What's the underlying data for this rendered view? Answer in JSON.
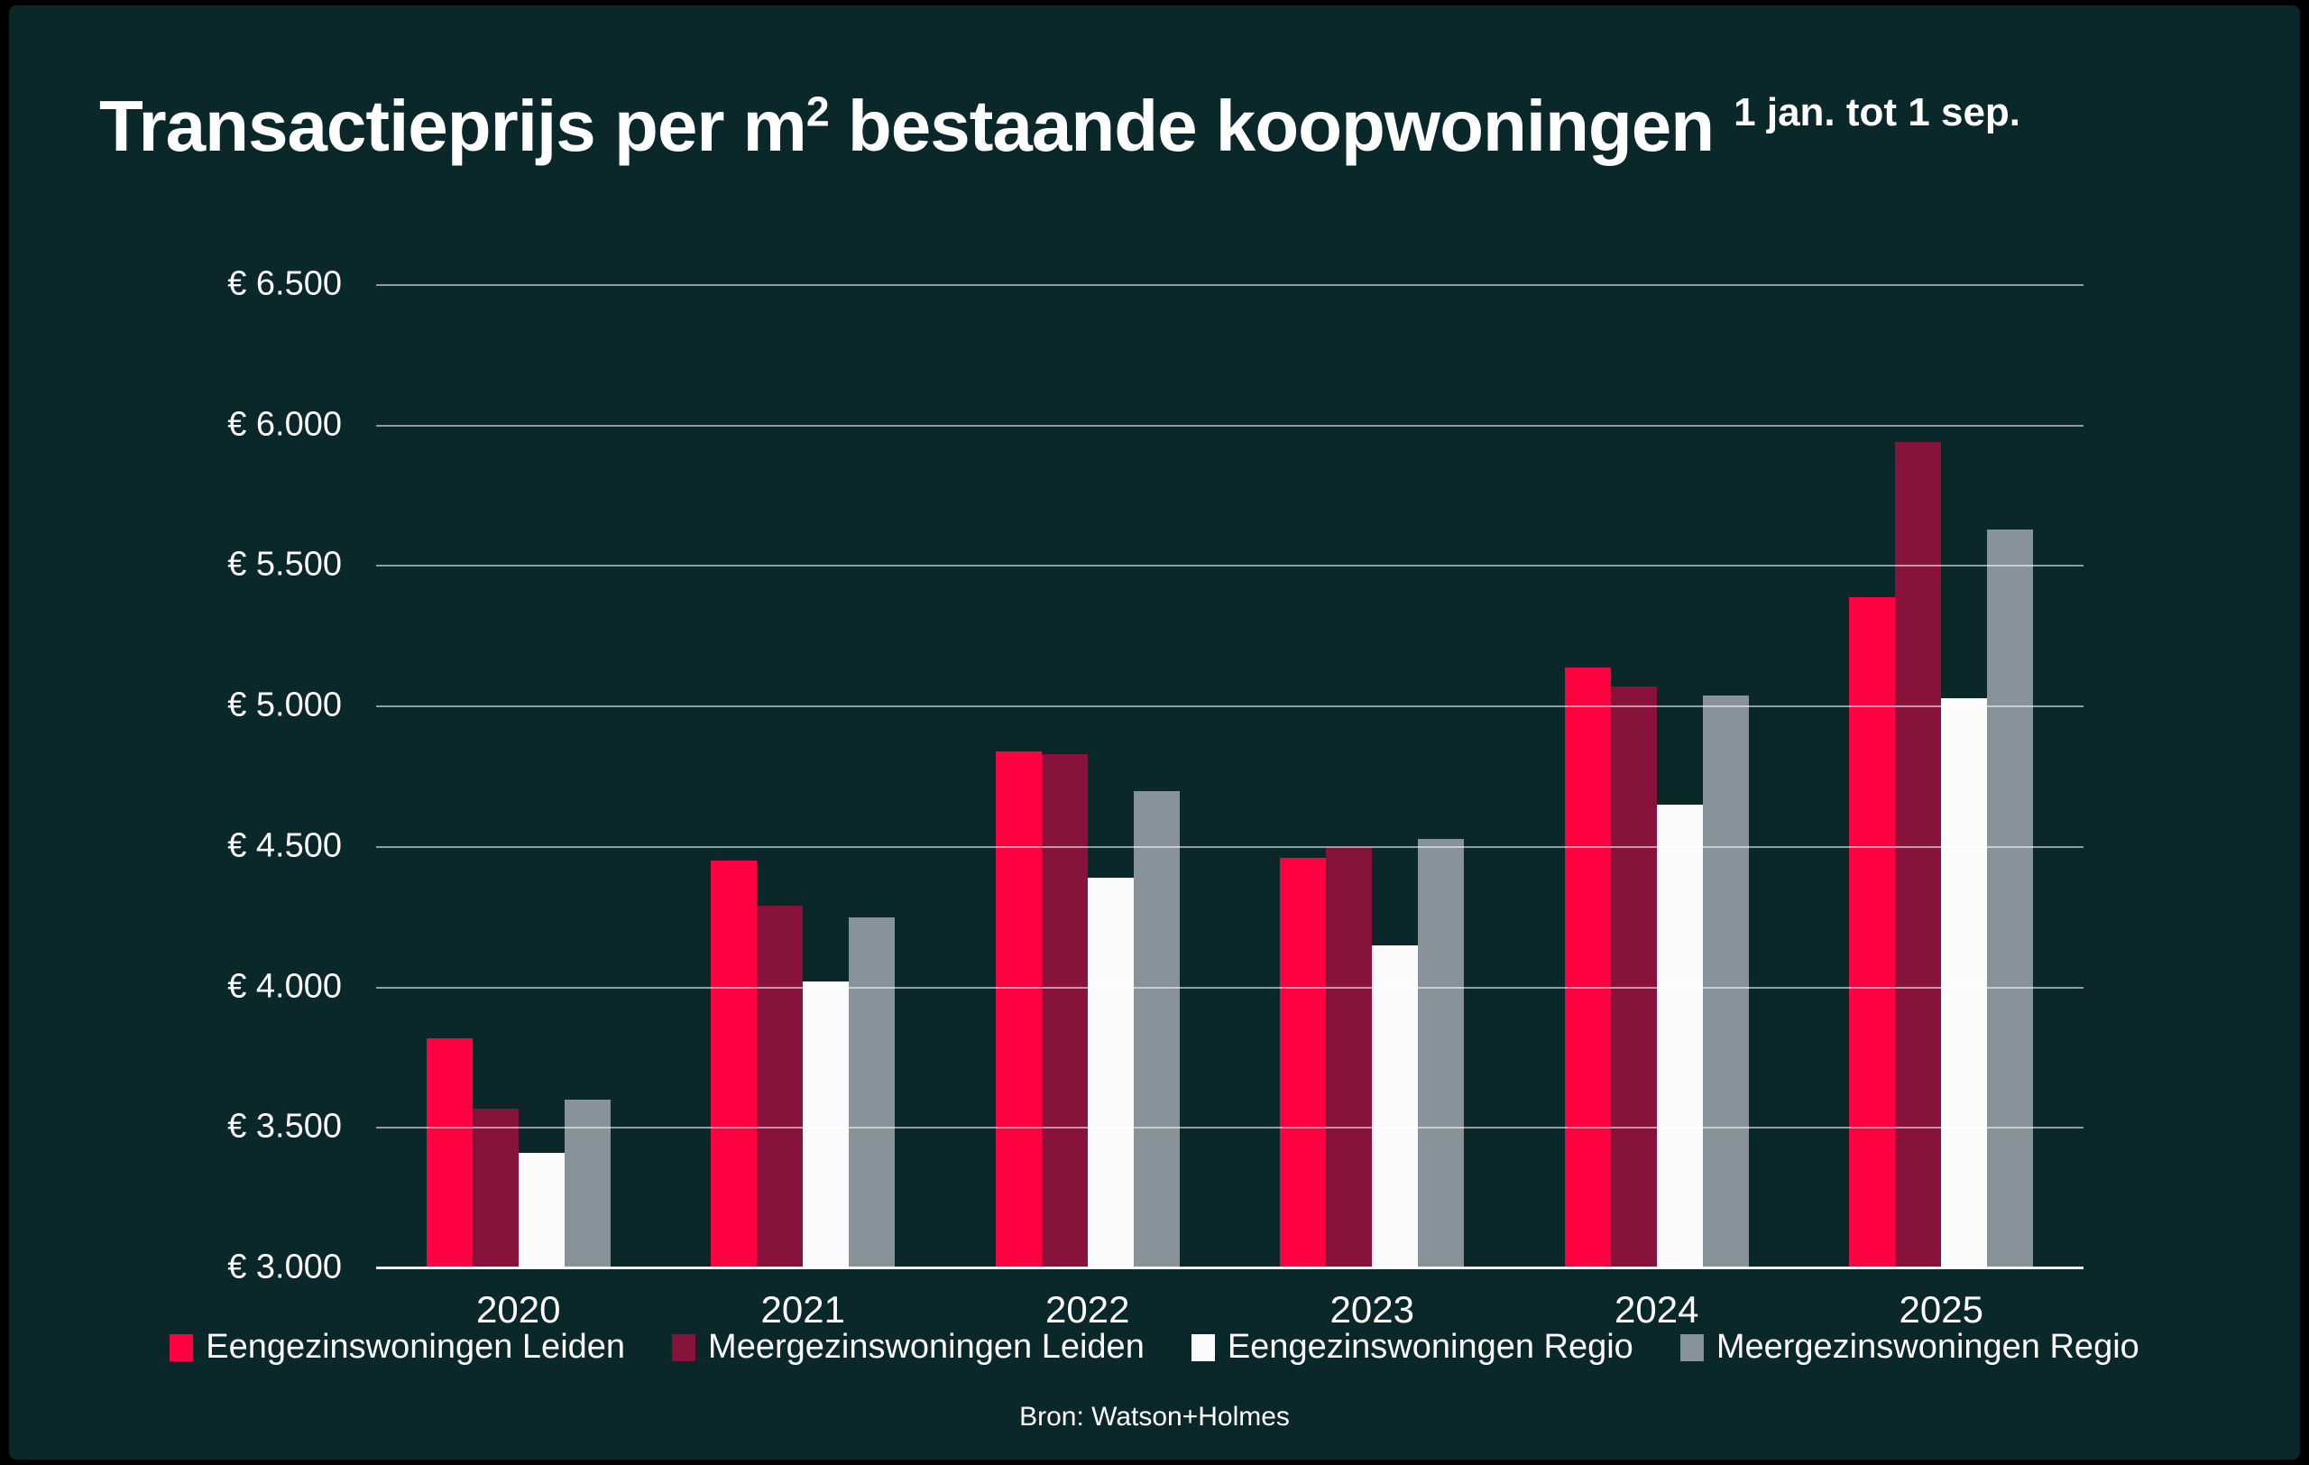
{
  "title": {
    "prefix": "Transactieprijs per m",
    "superscript": "2",
    "suffix": " bestaande koopwoningen",
    "period": "1 jan. tot 1 sep."
  },
  "source": "Bron: Watson+Holmes",
  "colors": {
    "card_background": "#0A2729",
    "frame": "#000000",
    "text": "#FFFFFF",
    "gridline": "#FFFFFF"
  },
  "chart_data": {
    "type": "bar",
    "title": "Transactieprijs per m² bestaande koopwoningen",
    "subtitle": "1 jan. tot 1 sep.",
    "categories": [
      "2020",
      "2021",
      "2022",
      "2023",
      "2024",
      "2025"
    ],
    "series": [
      {
        "name": "Eengezinswoningen Leiden",
        "color": "#FF0040",
        "values": [
          3820,
          4450,
          4840,
          4460,
          5140,
          5390
        ]
      },
      {
        "name": "Meergezinswoningen Leiden",
        "color": "#87133A",
        "values": [
          3570,
          4290,
          4830,
          4500,
          5070,
          5940
        ]
      },
      {
        "name": "Eengezinswoningen Regio",
        "color": "#FBFBFB",
        "values": [
          3410,
          4020,
          4390,
          4150,
          4650,
          5030
        ]
      },
      {
        "name": "Meergezinswoningen Regio",
        "color": "#879398",
        "values": [
          3600,
          4250,
          4700,
          4530,
          5040,
          5630
        ]
      }
    ],
    "y_axis": {
      "min": 3000,
      "max": 6500,
      "tick_step": 500,
      "tick_labels": [
        "€ 3.000",
        "€ 3.500",
        "€ 4.000",
        "€ 4.500",
        "€ 5.000",
        "€ 5.500",
        "€ 6.000",
        "€ 6.500"
      ]
    },
    "grid": true,
    "legend_position": "bottom",
    "source": "Bron: Watson+Holmes"
  }
}
